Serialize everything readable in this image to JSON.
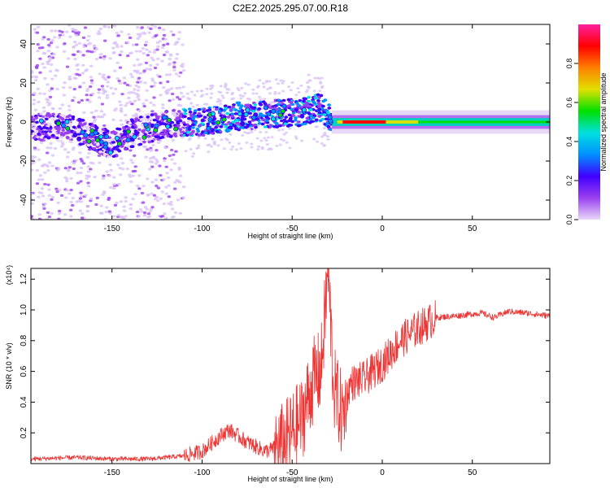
{
  "title": "C2E2.2025.295.07.00.R18",
  "chart_data": [
    {
      "type": "heatmap",
      "xlabel": "Height of straight line (km)",
      "ylabel": "Frequency (Hz)",
      "xlim": [
        -195,
        93
      ],
      "ylim": [
        -50,
        50
      ],
      "xticks": [
        -150,
        -100,
        -50,
        0,
        50
      ],
      "xtick_labels": [
        "-150",
        "-100",
        "-50",
        "0",
        "50"
      ],
      "yticks": [
        -40,
        -20,
        0,
        20,
        40
      ],
      "ytick_labels": [
        "-40",
        "-20",
        "0",
        "20",
        "40"
      ],
      "colorbar": {
        "label": "Normalized spectral amplitude",
        "range": [
          0,
          1
        ],
        "ticks": [
          0.0,
          0.2,
          0.4,
          0.6,
          0.8
        ],
        "tick_labels": [
          "0.0",
          "0.2",
          "0.4",
          "0.6",
          "0.8"
        ],
        "colors": [
          "#e8d8f8",
          "#9b40f0",
          "#4000ff",
          "#0090ff",
          "#00e0e0",
          "#00e000",
          "#e0e000",
          "#ff8000",
          "#ff0000",
          "#ff20a0"
        ]
      },
      "ridge": [
        {
          "x": -195,
          "y": -2
        },
        {
          "x": -175,
          "y": -3
        },
        {
          "x": -160,
          "y": -8
        },
        {
          "x": -150,
          "y": -12
        },
        {
          "x": -140,
          "y": -6
        },
        {
          "x": -120,
          "y": -1
        },
        {
          "x": -100,
          "y": 0
        },
        {
          "x": -80,
          "y": 3
        },
        {
          "x": -60,
          "y": 4
        },
        {
          "x": -45,
          "y": 5
        },
        {
          "x": -35,
          "y": 8
        },
        {
          "x": -28,
          "y": 2
        },
        {
          "x": -20,
          "y": 0
        },
        {
          "x": 0,
          "y": 0
        },
        {
          "x": 20,
          "y": 0
        },
        {
          "x": 50,
          "y": 0
        },
        {
          "x": 93,
          "y": 0
        }
      ]
    },
    {
      "type": "line",
      "xlabel": "Height of straight line (km)",
      "ylabel": "SNR (10 * v/v)",
      "multiplier_label": "(x10⁴)",
      "xlim": [
        -195,
        93
      ],
      "ylim": [
        0,
        1.27
      ],
      "xticks": [
        -150,
        -100,
        -50,
        0,
        50
      ],
      "xtick_labels": [
        "-150",
        "-100",
        "-50",
        "0",
        "50"
      ],
      "yticks": [
        0.2,
        0.4,
        0.6,
        0.8,
        1.0,
        1.2
      ],
      "ytick_labels": [
        "0.2",
        "0.4",
        "0.6",
        "0.8",
        "1.0",
        "1.2"
      ],
      "series": [
        {
          "name": "SNR",
          "color": "#ee3333",
          "points": [
            {
              "x": -195,
              "y": 0.03
            },
            {
              "x": -170,
              "y": 0.04
            },
            {
              "x": -150,
              "y": 0.03
            },
            {
              "x": -130,
              "y": 0.03
            },
            {
              "x": -110,
              "y": 0.05
            },
            {
              "x": -100,
              "y": 0.08
            },
            {
              "x": -90,
              "y": 0.18
            },
            {
              "x": -85,
              "y": 0.22
            },
            {
              "x": -75,
              "y": 0.14
            },
            {
              "x": -65,
              "y": 0.08
            },
            {
              "x": -55,
              "y": 0.12
            },
            {
              "x": -45,
              "y": 0.28
            },
            {
              "x": -38,
              "y": 0.55
            },
            {
              "x": -34,
              "y": 0.6
            },
            {
              "x": -30,
              "y": 1.27
            },
            {
              "x": -27,
              "y": 0.5
            },
            {
              "x": -22,
              "y": 0.3
            },
            {
              "x": -18,
              "y": 0.52
            },
            {
              "x": -10,
              "y": 0.55
            },
            {
              "x": 0,
              "y": 0.65
            },
            {
              "x": 10,
              "y": 0.8
            },
            {
              "x": 20,
              "y": 0.88
            },
            {
              "x": 30,
              "y": 0.95
            },
            {
              "x": 40,
              "y": 0.96
            },
            {
              "x": 55,
              "y": 0.98
            },
            {
              "x": 62,
              "y": 0.95
            },
            {
              "x": 70,
              "y": 0.99
            },
            {
              "x": 80,
              "y": 0.98
            },
            {
              "x": 93,
              "y": 0.96
            }
          ]
        }
      ]
    }
  ]
}
